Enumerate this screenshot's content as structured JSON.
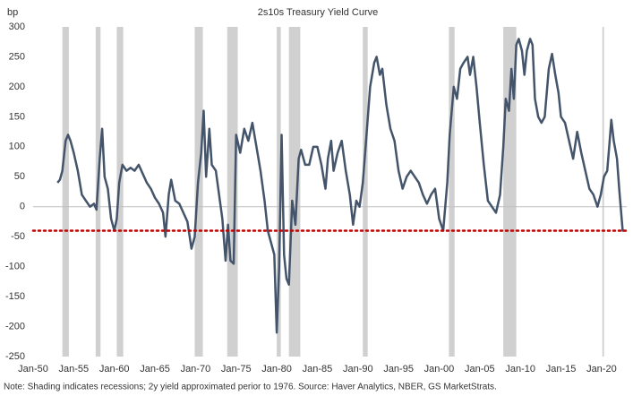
{
  "chart_data": {
    "type": "line",
    "title": "2s10s Treasury Yield Curve",
    "y_label": "bp",
    "note": "Note: Shading indicates recessions; 2y yield approximated perior to 1976. Source: Haver Analytics, NBER, GS MarketStrats.",
    "color": "#44546a",
    "recession_color": "#d0d0d0",
    "recessions": [
      [
        1953.6,
        1954.4
      ],
      [
        1957.7,
        1958.3
      ],
      [
        1960.3,
        1961.1
      ],
      [
        1969.9,
        1970.9
      ],
      [
        1973.9,
        1975.2
      ],
      [
        1980.0,
        1980.5
      ],
      [
        1981.5,
        1982.9
      ],
      [
        1990.6,
        1991.2
      ],
      [
        2001.2,
        2001.9
      ],
      [
        2007.9,
        2009.5
      ],
      [
        2020.1,
        2020.3
      ]
    ],
    "reference_line": {
      "value": -40,
      "color": "#c00000"
    },
    "x": [
      1953,
      1953.3,
      1953.6,
      1954,
      1954.3,
      1954.6,
      1955,
      1955.5,
      1956,
      1956.5,
      1957,
      1957.5,
      1957.8,
      1958.2,
      1958.5,
      1958.8,
      1959.2,
      1959.6,
      1960,
      1960.3,
      1960.6,
      1961,
      1961.5,
      1962,
      1962.5,
      1963,
      1963.5,
      1964,
      1964.5,
      1965,
      1965.5,
      1966,
      1966.3,
      1966.7,
      1967,
      1967.5,
      1968,
      1968.5,
      1969,
      1969.5,
      1969.9,
      1970.3,
      1970.7,
      1971,
      1971.3,
      1971.7,
      1972,
      1972.5,
      1973,
      1973.3,
      1973.7,
      1974,
      1974.3,
      1974.7,
      1975,
      1975.5,
      1976,
      1976.5,
      1977,
      1977.5,
      1978,
      1978.5,
      1978.9,
      1979.3,
      1979.7,
      1980,
      1980.3,
      1980.6,
      1980.9,
      1981.2,
      1981.5,
      1981.9,
      1982.3,
      1982.7,
      1983,
      1983.5,
      1984,
      1984.5,
      1985,
      1985.5,
      1986,
      1986.3,
      1986.7,
      1987,
      1987.5,
      1988,
      1988.5,
      1989,
      1989.4,
      1989.8,
      1990.2,
      1990.6,
      1991,
      1991.5,
      1992,
      1992.3,
      1992.7,
      1993,
      1993.5,
      1994,
      1994.5,
      1995,
      1995.5,
      1996,
      1996.5,
      1997,
      1997.5,
      1998,
      1998.5,
      1999,
      1999.5,
      2000,
      2000.5,
      2001,
      2001.3,
      2001.8,
      2002.2,
      2002.6,
      2003,
      2003.5,
      2003.8,
      2004.2,
      2004.6,
      2005,
      2005.5,
      2006,
      2006.5,
      2007,
      2007.5,
      2007.9,
      2008.2,
      2008.6,
      2008.9,
      2009.2,
      2009.5,
      2009.8,
      2010.2,
      2010.5,
      2010.8,
      2011.2,
      2011.5,
      2011.8,
      2012.2,
      2012.6,
      2013,
      2013.5,
      2013.9,
      2014.3,
      2014.7,
      2015,
      2015.5,
      2016,
      2016.5,
      2017,
      2017.5,
      2018,
      2018.5,
      2019,
      2019.5,
      2019.9,
      2020.3,
      2020.7,
      2021,
      2021.2,
      2021.5,
      2021.9,
      2022.2,
      2022.6,
      2022.8
    ],
    "values": [
      40,
      45,
      60,
      110,
      120,
      110,
      90,
      60,
      20,
      10,
      0,
      5,
      -5,
      80,
      130,
      50,
      30,
      -20,
      -40,
      -20,
      40,
      70,
      60,
      65,
      60,
      70,
      55,
      40,
      30,
      15,
      5,
      -10,
      -50,
      20,
      45,
      10,
      5,
      -10,
      -25,
      -70,
      -50,
      40,
      90,
      160,
      50,
      130,
      70,
      60,
      10,
      -20,
      -90,
      -30,
      -90,
      -95,
      120,
      90,
      130,
      110,
      140,
      100,
      60,
      10,
      -40,
      -60,
      -80,
      -210,
      -100,
      120,
      -80,
      -120,
      -130,
      10,
      -30,
      80,
      95,
      70,
      70,
      100,
      100,
      70,
      30,
      80,
      110,
      60,
      90,
      110,
      60,
      20,
      -30,
      10,
      0,
      40,
      110,
      200,
      240,
      250,
      220,
      230,
      170,
      130,
      110,
      60,
      30,
      50,
      60,
      50,
      40,
      20,
      5,
      20,
      30,
      -20,
      -40,
      40,
      120,
      200,
      180,
      230,
      240,
      250,
      220,
      250,
      200,
      140,
      70,
      10,
      0,
      -10,
      20,
      100,
      180,
      160,
      230,
      180,
      270,
      280,
      260,
      220,
      260,
      280,
      270,
      180,
      150,
      140,
      150,
      230,
      255,
      220,
      190,
      150,
      140,
      110,
      80,
      125,
      90,
      60,
      30,
      20,
      0,
      20,
      50,
      60,
      110,
      145,
      110,
      80,
      25,
      -40,
      -40
    ],
    "xlim": [
      1950,
      2023.1
    ],
    "xticks": [
      {
        "value": 1950,
        "label": "Jan-50"
      },
      {
        "value": 1955,
        "label": "Jan-55"
      },
      {
        "value": 1960,
        "label": "Jan-60"
      },
      {
        "value": 1965,
        "label": "Jan-65"
      },
      {
        "value": 1970,
        "label": "Jan-70"
      },
      {
        "value": 1975,
        "label": "Jan-75"
      },
      {
        "value": 1980,
        "label": "Jan-80"
      },
      {
        "value": 1985,
        "label": "Jan-85"
      },
      {
        "value": 1990,
        "label": "Jan-90"
      },
      {
        "value": 1995,
        "label": "Jan-95"
      },
      {
        "value": 2000,
        "label": "Jan-00"
      },
      {
        "value": 2005,
        "label": "Jan-05"
      },
      {
        "value": 2010,
        "label": "Jan-10"
      },
      {
        "value": 2015,
        "label": "Jan-15"
      },
      {
        "value": 2020,
        "label": "Jan-20"
      }
    ],
    "ylim": [
      -250,
      300
    ],
    "yticks": [
      300,
      250,
      200,
      150,
      100,
      50,
      0,
      -50,
      -100,
      -150,
      -200,
      -250
    ]
  }
}
